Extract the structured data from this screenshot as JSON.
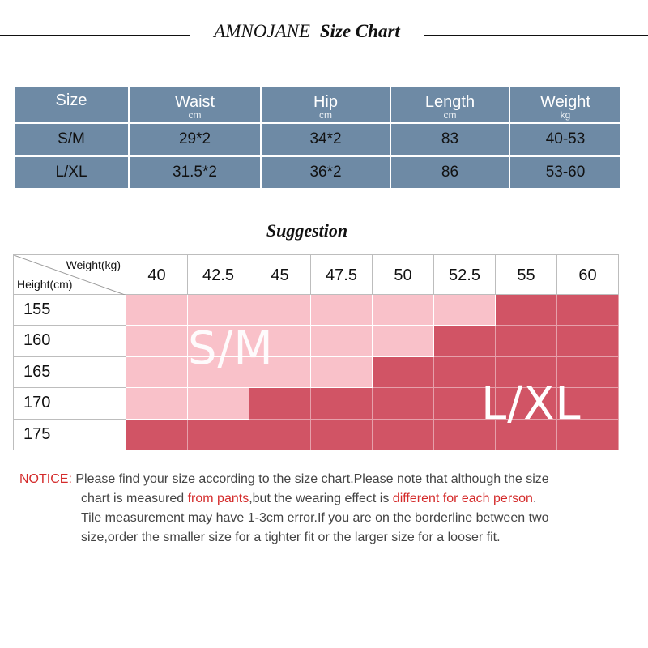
{
  "title": {
    "brand": "AMNOJANE",
    "suffix": "Size Chart"
  },
  "size_table": {
    "headers": [
      {
        "label": "Size",
        "unit": ""
      },
      {
        "label": "Waist",
        "unit": "cm"
      },
      {
        "label": "Hip",
        "unit": "cm"
      },
      {
        "label": "Length",
        "unit": "cm"
      },
      {
        "label": "Weight",
        "unit": "kg"
      }
    ],
    "rows": [
      [
        "S/M",
        "29*2",
        "34*2",
        "83",
        "40-53"
      ],
      [
        "L/XL",
        "31.5*2",
        "36*2",
        "86",
        "53-60"
      ]
    ]
  },
  "suggestion": {
    "title": "Suggestion",
    "corner_top": "Weight(kg)",
    "corner_bottom": "Height(cm)",
    "weights": [
      "40",
      "42.5",
      "45",
      "47.5",
      "50",
      "52.5",
      "55",
      "60"
    ],
    "heights": [
      "155",
      "160",
      "165",
      "170",
      "175"
    ],
    "grid": [
      [
        "S/M",
        "S/M",
        "S/M",
        "S/M",
        "S/M",
        "S/M",
        "L/XL",
        "L/XL"
      ],
      [
        "S/M",
        "S/M",
        "S/M",
        "S/M",
        "S/M",
        "L/XL",
        "L/XL",
        "L/XL"
      ],
      [
        "S/M",
        "S/M",
        "S/M",
        "S/M",
        "L/XL",
        "L/XL",
        "L/XL",
        "L/XL"
      ],
      [
        "S/M",
        "S/M",
        "L/XL",
        "L/XL",
        "L/XL",
        "L/XL",
        "L/XL",
        "L/XL"
      ],
      [
        "L/XL",
        "L/XL",
        "L/XL",
        "L/XL",
        "L/XL",
        "L/XL",
        "L/XL",
        "L/XL"
      ]
    ],
    "overlay_sm": "S/M",
    "overlay_lxl": "L/XL",
    "colors": {
      "sm": "#f9c1c9",
      "lxl": "#d15465",
      "header_blue": "#6e8aa5"
    }
  },
  "notice": {
    "label": "NOTICE:",
    "line1": "Please find your size according to the size chart.Please note that although the size",
    "line2_a": "chart is measured ",
    "line2_red1": "from pants",
    "line2_b": ",but the wearing effect is ",
    "line2_red2": "different for each person",
    "line2_c": ".",
    "line3": "Tile measurement may have 1-3cm error.If you are on the borderline between two",
    "line4": "size,order the smaller size for a tighter fit or the larger size for a looser fit."
  }
}
